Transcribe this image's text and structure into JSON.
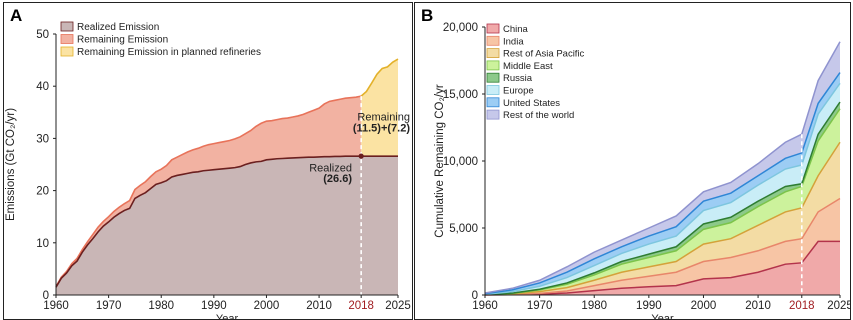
{
  "panels": [
    {
      "letter": "A"
    },
    {
      "letter": "B"
    }
  ],
  "chart_data": [
    {
      "type": "area",
      "xlabel": "Year",
      "ylabel": "Emissions (Gt CO₂/yr)",
      "xlim": [
        1960,
        2025
      ],
      "ylim": [
        0,
        50
      ],
      "x_ticks": [
        1960,
        1970,
        1980,
        1990,
        2000,
        2010,
        2018,
        2025
      ],
      "y_ticks": [
        0,
        10,
        20,
        30,
        40,
        50
      ],
      "highlight_tick": 2018,
      "grid": false,
      "legend": "top-left",
      "series": [
        {
          "name": "Realized Emission",
          "color": "#c9b6b6",
          "line_color": "#6b1f1f",
          "x": [
            1960,
            1961,
            1962,
            1963,
            1964,
            1965,
            1966,
            1967,
            1968,
            1969,
            1970,
            1971,
            1972,
            1973,
            1974,
            1975,
            1976,
            1977,
            1978,
            1979,
            1980,
            1981,
            1982,
            1983,
            1984,
            1985,
            1986,
            1987,
            1988,
            1989,
            1990,
            1991,
            1992,
            1993,
            1994,
            1995,
            1996,
            1997,
            1998,
            1999,
            2000,
            2001,
            2002,
            2003,
            2004,
            2005,
            2006,
            2007,
            2008,
            2009,
            2010,
            2011,
            2012,
            2013,
            2014,
            2015,
            2016,
            2017,
            2018,
            2025
          ],
          "values": [
            1.5,
            3.2,
            4.2,
            5.6,
            6.5,
            8.2,
            9.6,
            10.8,
            12.1,
            13.2,
            14.0,
            14.9,
            15.6,
            16.2,
            16.6,
            18.5,
            19.1,
            19.6,
            20.4,
            21.2,
            21.5,
            21.9,
            22.6,
            22.9,
            23.1,
            23.3,
            23.5,
            23.6,
            23.8,
            23.9,
            24.0,
            24.1,
            24.2,
            24.3,
            24.4,
            24.6,
            25.0,
            25.3,
            25.5,
            25.6,
            25.9,
            26.0,
            26.1,
            26.15,
            26.2,
            26.25,
            26.3,
            26.35,
            26.4,
            26.4,
            26.45,
            26.5,
            26.5,
            26.55,
            26.55,
            26.6,
            26.6,
            26.6,
            26.6,
            26.6
          ]
        },
        {
          "name": "Remaining Emission",
          "color": "#f2b2a2",
          "line_color": "#e8735a",
          "x": [
            1960,
            1961,
            1962,
            1963,
            1964,
            1965,
            1966,
            1967,
            1968,
            1969,
            1970,
            1971,
            1972,
            1973,
            1974,
            1975,
            1976,
            1977,
            1978,
            1979,
            1980,
            1981,
            1982,
            1983,
            1984,
            1985,
            1986,
            1987,
            1988,
            1989,
            1990,
            1991,
            1992,
            1993,
            1994,
            1995,
            1996,
            1997,
            1998,
            1999,
            2000,
            2001,
            2002,
            2003,
            2004,
            2005,
            2006,
            2007,
            2008,
            2009,
            2010,
            2011,
            2012,
            2013,
            2014,
            2015,
            2016,
            2017,
            2018
          ],
          "values": [
            1.6,
            3.4,
            4.5,
            6.0,
            7.0,
            8.7,
            10.2,
            11.6,
            13.0,
            14.1,
            15.0,
            16.0,
            16.8,
            17.5,
            18.1,
            20.2,
            21.0,
            21.7,
            22.7,
            23.6,
            24.1,
            24.8,
            25.9,
            26.4,
            26.9,
            27.4,
            27.8,
            28.1,
            28.5,
            28.8,
            29.0,
            29.2,
            29.4,
            29.6,
            29.9,
            30.3,
            30.9,
            31.5,
            32.3,
            32.9,
            33.3,
            33.4,
            33.6,
            33.8,
            33.9,
            34.1,
            34.3,
            34.6,
            35.0,
            35.4,
            35.8,
            36.6,
            37.1,
            37.3,
            37.5,
            37.7,
            37.8,
            37.9,
            38.1
          ]
        },
        {
          "name": "Remaining Emission in planned refineries",
          "color": "#fbe3a3",
          "line_color": "#e3b12a",
          "x": [
            2018,
            2019,
            2020,
            2021,
            2022,
            2023,
            2024,
            2025
          ],
          "values": [
            38.1,
            39.0,
            40.6,
            42.3,
            43.4,
            43.7,
            44.6,
            45.2
          ]
        }
      ],
      "annotations": [
        {
          "text": "Remaining",
          "bold": false
        },
        {
          "text": "(11.5)+(7.2)",
          "bold": true
        },
        {
          "text": "Realized",
          "bold": false
        },
        {
          "text": "(26.6)",
          "bold": true
        }
      ]
    },
    {
      "type": "area",
      "xlabel": "Year",
      "ylabel": "Cumulative Remaining CO₂/yr",
      "xlim": [
        1960,
        2025
      ],
      "ylim": [
        0,
        20000
      ],
      "x_ticks": [
        1960,
        1970,
        1980,
        1990,
        2000,
        2010,
        2018,
        2025
      ],
      "y_ticks": [
        0,
        5000,
        10000,
        15000,
        20000
      ],
      "y_tick_labels": [
        "0",
        "5,000",
        "10,000",
        "15,000",
        "20,000"
      ],
      "highlight_tick": 2018,
      "grid": false,
      "legend": "top-left",
      "stacked": true,
      "x": [
        1960,
        1965,
        1970,
        1975,
        1980,
        1985,
        1990,
        1995,
        2000,
        2005,
        2010,
        2015,
        2018,
        2021,
        2025
      ],
      "series": [
        {
          "name": "China",
          "color": "#f0a9a9",
          "line_color": "#b3334b",
          "top": [
            0,
            20,
            60,
            150,
            330,
            500,
            620,
            700,
            1200,
            1300,
            1700,
            2300,
            2400,
            4000,
            4000
          ]
        },
        {
          "name": "India",
          "color": "#f7c5a5",
          "line_color": "#e8866a",
          "top": [
            10,
            40,
            120,
            300,
            700,
            1100,
            1400,
            1700,
            2500,
            2800,
            3300,
            4000,
            4200,
            6200,
            7200
          ]
        },
        {
          "name": "Rest of Asia Pacific",
          "color": "#f3dca4",
          "line_color": "#d4a23a",
          "top": [
            20,
            80,
            250,
            550,
            1100,
            1700,
            2100,
            2500,
            3800,
            4200,
            5200,
            6200,
            6500,
            8900,
            11400
          ]
        },
        {
          "name": "Middle East",
          "color": "#ccf29c",
          "line_color": "#7cc44a",
          "top": [
            30,
            120,
            380,
            800,
            1500,
            2300,
            2800,
            3300,
            4900,
            5400,
            6600,
            7700,
            8100,
            11500,
            13900
          ]
        },
        {
          "name": "Russia",
          "color": "#8cc98a",
          "line_color": "#2e7d32",
          "top": [
            40,
            140,
            430,
            900,
            1650,
            2500,
            3050,
            3600,
            5300,
            5800,
            7000,
            8100,
            8300,
            12000,
            14400
          ]
        },
        {
          "name": "Europe",
          "color": "#c9edf7",
          "line_color": "#7dc6df",
          "top": [
            60,
            250,
            650,
            1300,
            2200,
            3100,
            3800,
            4400,
            6300,
            6900,
            8200,
            9400,
            9700,
            13500,
            15800
          ]
        },
        {
          "name": "United States",
          "color": "#9ccdf4",
          "line_color": "#2f86d6",
          "top": [
            100,
            380,
            900,
            1700,
            2700,
            3600,
            4400,
            5100,
            7000,
            7600,
            8900,
            10200,
            10600,
            14300,
            16600
          ]
        },
        {
          "name": "Rest of the world",
          "color": "#c6c8ea",
          "line_color": "#8f93cf",
          "top": [
            150,
            500,
            1100,
            2100,
            3200,
            4100,
            5000,
            5900,
            7700,
            8400,
            9800,
            11400,
            12000,
            16000,
            18900
          ]
        }
      ]
    }
  ]
}
